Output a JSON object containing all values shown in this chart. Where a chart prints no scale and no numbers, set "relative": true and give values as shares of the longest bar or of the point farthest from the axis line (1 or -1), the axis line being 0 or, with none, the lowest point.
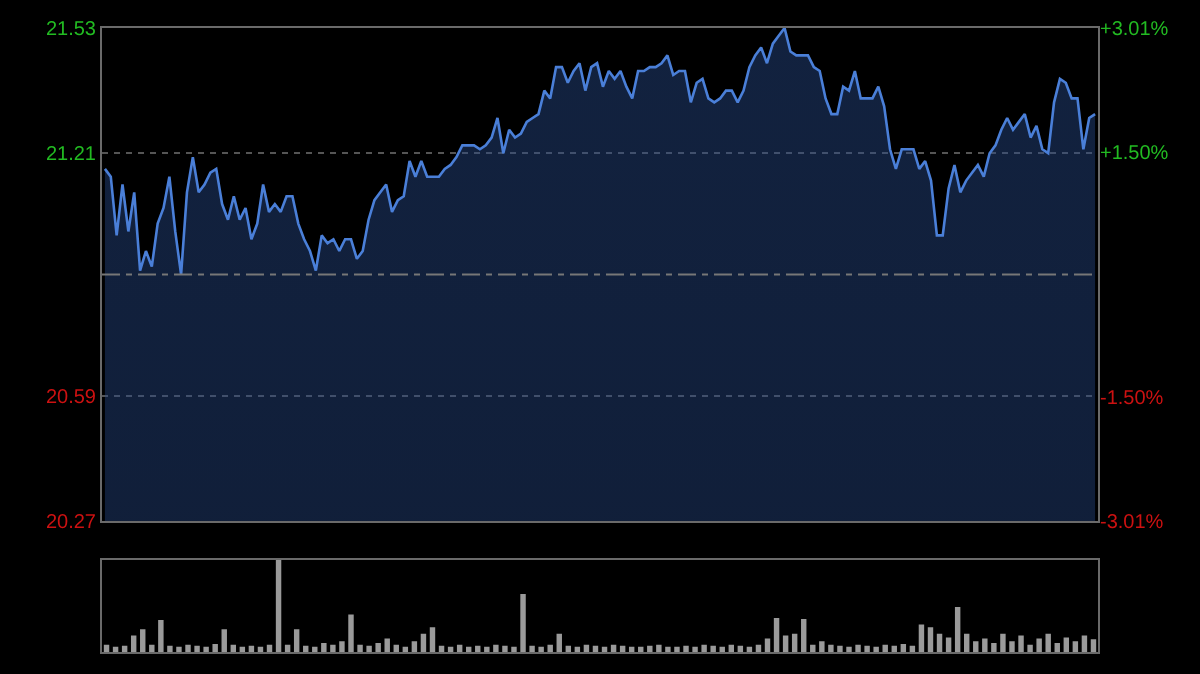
{
  "chart_data": [
    {
      "type": "area",
      "categories": [
        null,
        null,
        null,
        null,
        null,
        null,
        null,
        null,
        null,
        null,
        null,
        null,
        null,
        null,
        null,
        null,
        null,
        null,
        null,
        null,
        null,
        null,
        null,
        null,
        null,
        null,
        null,
        null,
        null,
        null,
        null,
        null,
        null,
        null,
        null,
        null,
        null,
        null,
        null,
        null,
        null,
        null,
        null,
        null,
        null,
        null,
        null,
        null,
        null,
        null,
        null,
        null,
        null,
        null,
        null,
        null,
        null,
        null,
        null,
        null,
        null,
        null,
        null,
        null,
        null,
        null,
        null,
        null,
        null,
        null,
        null,
        null,
        null,
        null,
        null,
        null,
        null,
        null,
        null,
        null,
        null,
        null,
        null,
        null,
        null,
        null,
        null,
        null,
        null,
        null,
        null,
        null,
        null,
        null,
        null,
        null,
        null,
        null,
        null,
        null,
        null,
        null,
        null,
        null,
        null,
        null,
        null,
        null,
        null,
        null,
        null,
        null,
        null,
        null,
        null,
        null,
        null,
        null,
        null,
        null,
        null,
        null,
        null,
        null,
        null,
        null,
        null,
        null,
        null,
        null,
        null,
        null,
        null,
        null,
        null,
        null,
        null,
        null,
        null,
        null,
        null,
        null,
        null,
        null,
        null,
        null,
        null,
        null,
        null,
        null,
        null,
        null,
        null,
        null,
        null,
        null,
        null,
        null,
        null,
        null,
        null,
        null,
        null,
        null,
        null,
        null,
        null,
        null,
        null,
        null
      ],
      "series": [
        {
          "color": "#4a7fd8",
          "values": [
            21.17,
            21.15,
            21.0,
            21.13,
            21.01,
            21.11,
            20.91,
            20.96,
            20.92,
            21.03,
            21.07,
            21.15,
            21.01,
            20.9,
            21.11,
            21.2,
            21.11,
            21.13,
            21.16,
            21.17,
            21.08,
            21.04,
            21.1,
            21.04,
            21.07,
            20.99,
            21.03,
            21.13,
            21.06,
            21.08,
            21.06,
            21.1,
            21.1,
            21.03,
            20.99,
            20.96,
            20.91,
            21.0,
            20.98,
            20.99,
            20.96,
            20.99,
            20.99,
            20.94,
            20.96,
            21.04,
            21.09,
            21.11,
            21.13,
            21.06,
            21.09,
            21.1,
            21.19,
            21.15,
            21.19,
            21.15,
            21.15,
            21.15,
            21.17,
            21.18,
            21.2,
            21.23,
            21.23,
            21.23,
            21.22,
            21.23,
            21.25,
            21.3,
            21.21,
            21.27,
            21.25,
            21.26,
            21.29,
            21.3,
            21.31,
            21.37,
            21.35,
            21.43,
            21.43,
            21.39,
            21.42,
            21.44,
            21.37,
            21.43,
            21.44,
            21.38,
            21.42,
            21.4,
            21.42,
            21.38,
            21.35,
            21.42,
            21.42,
            21.43,
            21.43,
            21.44,
            21.46,
            21.41,
            21.42,
            21.42,
            21.34,
            21.39,
            21.4,
            21.35,
            21.34,
            21.35,
            21.37,
            21.37,
            21.34,
            21.37,
            21.43,
            21.46,
            21.48,
            21.44,
            21.49,
            21.51,
            21.53,
            21.47,
            21.46,
            21.46,
            21.46,
            21.43,
            21.42,
            21.35,
            21.31,
            21.31,
            21.38,
            21.37,
            21.42,
            21.35,
            21.35,
            21.35,
            21.38,
            21.33,
            21.22,
            21.17,
            21.22,
            21.22,
            21.22,
            21.17,
            21.19,
            21.14,
            21.0,
            21.0,
            21.12,
            21.18,
            21.11,
            21.14,
            21.16,
            21.18,
            21.15,
            21.21,
            21.23,
            21.27,
            21.3,
            21.27,
            21.29,
            21.31,
            21.25,
            21.28,
            21.22,
            21.21,
            21.34,
            21.4,
            21.39,
            21.35,
            21.35,
            21.22,
            21.3,
            21.31
          ]
        }
      ],
      "ylim": [
        20.27,
        21.53
      ],
      "yticks": [
        21.53,
        21.21,
        20.59,
        20.27
      ],
      "y2lim": [
        -3.01,
        3.01
      ],
      "y2ticks": [
        {
          "value": 3.01,
          "label": "+3.01%"
        },
        {
          "value": 1.5,
          "label": "+1.50%"
        },
        {
          "value": -1.5,
          "label": "-1.50%"
        },
        {
          "value": -3.01,
          "label": "-3.01%"
        }
      ],
      "ref_lines": [
        {
          "axis": "y",
          "value": 20.9,
          "label": null,
          "color": "#777777",
          "line_style": "dashed"
        }
      ],
      "grid": "y",
      "marker": "none",
      "line_style": "solid",
      "tick_labels": "y"
    },
    {
      "type": "bar",
      "relative": true,
      "categories": [
        null,
        null,
        null,
        null,
        null,
        null,
        null,
        null,
        null,
        null,
        null,
        null,
        null,
        null,
        null,
        null,
        null,
        null,
        null,
        null,
        null,
        null,
        null,
        null,
        null,
        null,
        null,
        null,
        null,
        null,
        null,
        null,
        null,
        null,
        null,
        null,
        null,
        null,
        null,
        null,
        null,
        null,
        null,
        null,
        null,
        null,
        null,
        null,
        null,
        null,
        null,
        null,
        null,
        null,
        null,
        null,
        null,
        null,
        null,
        null,
        null,
        null,
        null,
        null,
        null,
        null,
        null,
        null,
        null,
        null,
        null,
        null,
        null,
        null,
        null,
        null,
        null,
        null,
        null,
        null,
        null,
        null,
        null,
        null,
        null,
        null,
        null,
        null,
        null,
        null,
        null,
        null,
        null,
        null,
        null,
        null,
        null,
        null,
        null,
        null,
        null,
        null,
        null,
        null,
        null,
        null,
        null,
        null,
        null,
        null
      ],
      "color": "#9a9a9a",
      "values": [
        0.08,
        0.06,
        0.07,
        0.18,
        0.25,
        0.08,
        0.35,
        0.07,
        0.06,
        0.08,
        0.07,
        0.06,
        0.09,
        0.25,
        0.08,
        0.06,
        0.07,
        0.06,
        0.08,
        1.0,
        0.08,
        0.25,
        0.07,
        0.06,
        0.1,
        0.08,
        0.12,
        0.41,
        0.08,
        0.07,
        0.1,
        0.15,
        0.08,
        0.06,
        0.12,
        0.2,
        0.27,
        0.07,
        0.06,
        0.08,
        0.06,
        0.07,
        0.06,
        0.08,
        0.07,
        0.06,
        0.63,
        0.07,
        0.06,
        0.08,
        0.2,
        0.07,
        0.06,
        0.08,
        0.07,
        0.06,
        0.08,
        0.07,
        0.06,
        0.06,
        0.07,
        0.08,
        0.06,
        0.06,
        0.07,
        0.06,
        0.08,
        0.07,
        0.06,
        0.08,
        0.07,
        0.06,
        0.08,
        0.15,
        0.37,
        0.18,
        0.2,
        0.36,
        0.08,
        0.12,
        0.08,
        0.07,
        0.06,
        0.08,
        0.07,
        0.06,
        0.08,
        0.07,
        0.09,
        0.07,
        0.3,
        0.27,
        0.2,
        0.16,
        0.49,
        0.2,
        0.12,
        0.15,
        0.1,
        0.2,
        0.12,
        0.18,
        0.08,
        0.15,
        0.2,
        0.1,
        0.16,
        0.12,
        0.18,
        0.14
      ],
      "tick_labels": false
    }
  ]
}
